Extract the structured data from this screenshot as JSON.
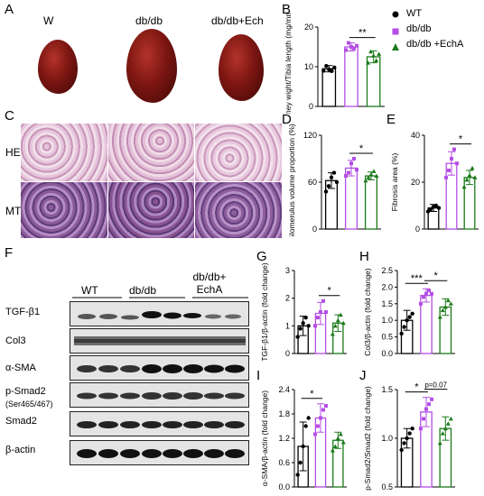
{
  "panels": {
    "A": {
      "label": "A",
      "groups": [
        "W",
        "db/db",
        "db/db+Ech"
      ]
    },
    "B": {
      "label": "B"
    },
    "C": {
      "label": "C",
      "rows": [
        "HE",
        "MT"
      ]
    },
    "D": {
      "label": "D"
    },
    "E": {
      "label": "E"
    },
    "F": {
      "label": "F",
      "groups": [
        "WT",
        "db/db",
        "db/db+ EchA"
      ],
      "proteins": [
        "TGF-β1",
        "Col3",
        "α-SMA",
        "p-Smad2",
        "(Ser465/467)",
        "Smad2",
        "β-actin"
      ]
    },
    "G": {
      "label": "G"
    },
    "H": {
      "label": "H"
    },
    "I": {
      "label": "I"
    },
    "J": {
      "label": "J"
    }
  },
  "legend": [
    {
      "name": "WT",
      "color": "#000000",
      "marker": "circle"
    },
    {
      "name": "db/db",
      "color": "#b44ee6",
      "marker": "square"
    },
    {
      "name": "db/db +EchA",
      "color": "#1a7a1a",
      "marker": "triangle"
    }
  ],
  "colors": {
    "wt": "#000000",
    "dbdb": "#b44ee6",
    "echa": "#1a7a1a"
  },
  "chart_data": [
    {
      "id": "B",
      "type": "bar",
      "ylabel": "Kidney wight/Tibia length (mg/mm)",
      "ylim": [
        0,
        20
      ],
      "yticks": [
        "0",
        "10",
        "20"
      ],
      "series": [
        {
          "name": "WT",
          "mean": 9.5,
          "err": 0.8,
          "points": [
            9.0,
            10.2,
            9.3,
            8.9,
            9.8
          ]
        },
        {
          "name": "db/db",
          "mean": 15.0,
          "err": 1.0,
          "points": [
            14.2,
            16.0,
            15.0,
            14.6,
            15.3
          ]
        },
        {
          "name": "db/db +EchA",
          "mean": 12.5,
          "err": 1.5,
          "points": [
            11.0,
            13.8,
            12.8,
            11.6,
            13.2
          ]
        }
      ],
      "sig": [
        {
          "from": 1,
          "to": 2,
          "text": "**"
        }
      ]
    },
    {
      "id": "D",
      "type": "bar",
      "ylabel": "Glomerulus volume proportion (%)",
      "ylim": [
        0,
        120
      ],
      "yticks": [
        "0",
        "60",
        "120"
      ],
      "series": [
        {
          "name": "WT",
          "mean": 62,
          "err": 10,
          "points": [
            48,
            55,
            66,
            72,
            60
          ]
        },
        {
          "name": "db/db",
          "mean": 78,
          "err": 10,
          "points": [
            68,
            72,
            84,
            90,
            76
          ]
        },
        {
          "name": "db/db +EchA",
          "mean": 68,
          "err": 5,
          "points": [
            62,
            66,
            70,
            74,
            68
          ]
        }
      ],
      "sig": [
        {
          "from": 1,
          "to": 2,
          "text": "*"
        }
      ]
    },
    {
      "id": "E",
      "type": "bar",
      "ylabel": "Fibrosis area (%)",
      "ylim": [
        0,
        40
      ],
      "yticks": [
        "0",
        "20",
        "40"
      ],
      "series": [
        {
          "name": "WT",
          "mean": 9,
          "err": 1.5,
          "points": [
            7.5,
            8.5,
            9.5,
            10,
            9
          ]
        },
        {
          "name": "db/db",
          "mean": 28,
          "err": 5,
          "points": [
            22,
            25,
            30,
            34,
            28
          ]
        },
        {
          "name": "db/db +EchA",
          "mean": 22,
          "err": 3,
          "points": [
            18,
            21,
            23,
            26,
            22
          ]
        }
      ],
      "sig": [
        {
          "from": 1,
          "to": 2,
          "text": "*"
        }
      ]
    },
    {
      "id": "G",
      "type": "bar",
      "ylabel": "TGF-β1/β-actin (fold change)",
      "ylim": [
        0,
        3
      ],
      "yticks": [
        "0",
        "1",
        "2",
        "3"
      ],
      "series": [
        {
          "name": "WT",
          "mean": 1.0,
          "err": 0.35,
          "points": [
            0.6,
            0.9,
            1.1,
            1.3,
            1.0
          ]
        },
        {
          "name": "db/db",
          "mean": 1.45,
          "err": 0.4,
          "points": [
            1.0,
            1.3,
            1.5,
            1.9,
            1.5
          ]
        },
        {
          "name": "db/db +EchA",
          "mean": 1.1,
          "err": 0.3,
          "points": [
            0.7,
            1.0,
            1.2,
            1.4,
            1.1
          ]
        }
      ],
      "sig": [
        {
          "from": 1,
          "to": 2,
          "text": "*"
        }
      ]
    },
    {
      "id": "H",
      "type": "bar",
      "ylabel": "Col3/β-actin (fold change)",
      "ylim": [
        0,
        2.5
      ],
      "yticks": [
        "0.0",
        "0.5",
        "1.0",
        "1.5",
        "2.0",
        "2.5"
      ],
      "series": [
        {
          "name": "WT",
          "mean": 1.0,
          "err": 0.3,
          "points": [
            0.6,
            0.8,
            1.0,
            1.1,
            1.2
          ]
        },
        {
          "name": "db/db",
          "mean": 1.75,
          "err": 0.2,
          "points": [
            1.5,
            1.7,
            1.8,
            1.9,
            1.8
          ]
        },
        {
          "name": "db/db +EchA",
          "mean": 1.4,
          "err": 0.25,
          "points": [
            1.1,
            1.3,
            1.4,
            1.6,
            1.5
          ]
        }
      ],
      "sig": [
        {
          "from": 0,
          "to": 1,
          "text": "***"
        },
        {
          "from": 1,
          "to": 2,
          "text": "*"
        }
      ]
    },
    {
      "id": "I",
      "type": "bar",
      "ylabel": "α-SMA/β-actin (fold change)",
      "ylim": [
        0,
        2.4
      ],
      "yticks": [
        "0.0",
        "0.6",
        "1.2",
        "1.8",
        "2.4"
      ],
      "series": [
        {
          "name": "WT",
          "mean": 1.0,
          "err": 0.6,
          "points": [
            0.3,
            0.6,
            1.0,
            1.5,
            1.7
          ]
        },
        {
          "name": "db/db",
          "mean": 1.7,
          "err": 0.35,
          "points": [
            1.3,
            1.5,
            1.7,
            1.9,
            2.0
          ]
        },
        {
          "name": "db/db +EchA",
          "mean": 1.15,
          "err": 0.2,
          "points": [
            0.9,
            1.0,
            1.2,
            1.3,
            1.1
          ]
        }
      ],
      "sig": [
        {
          "from": 0,
          "to": 1,
          "text": "*"
        }
      ]
    },
    {
      "id": "J",
      "type": "bar",
      "ylabel": "p-Smad2/Smad2 (fold change)",
      "ylim": [
        0.5,
        1.5
      ],
      "yticks": [
        "0.5",
        "1.0",
        "1.5"
      ],
      "series": [
        {
          "name": "WT",
          "mean": 1.0,
          "err": 0.1,
          "points": [
            0.88,
            0.95,
            1.0,
            1.05,
            1.1
          ]
        },
        {
          "name": "db/db",
          "mean": 1.27,
          "err": 0.15,
          "points": [
            1.1,
            1.2,
            1.3,
            1.35,
            1.4
          ]
        },
        {
          "name": "db/db +EchA",
          "mean": 1.1,
          "err": 0.12,
          "points": [
            0.95,
            1.05,
            1.1,
            1.15,
            1.2
          ]
        }
      ],
      "sig": [
        {
          "from": 0,
          "to": 1,
          "text": "*"
        },
        {
          "from": 1,
          "to": 2,
          "text": "p=0.07"
        }
      ]
    }
  ]
}
